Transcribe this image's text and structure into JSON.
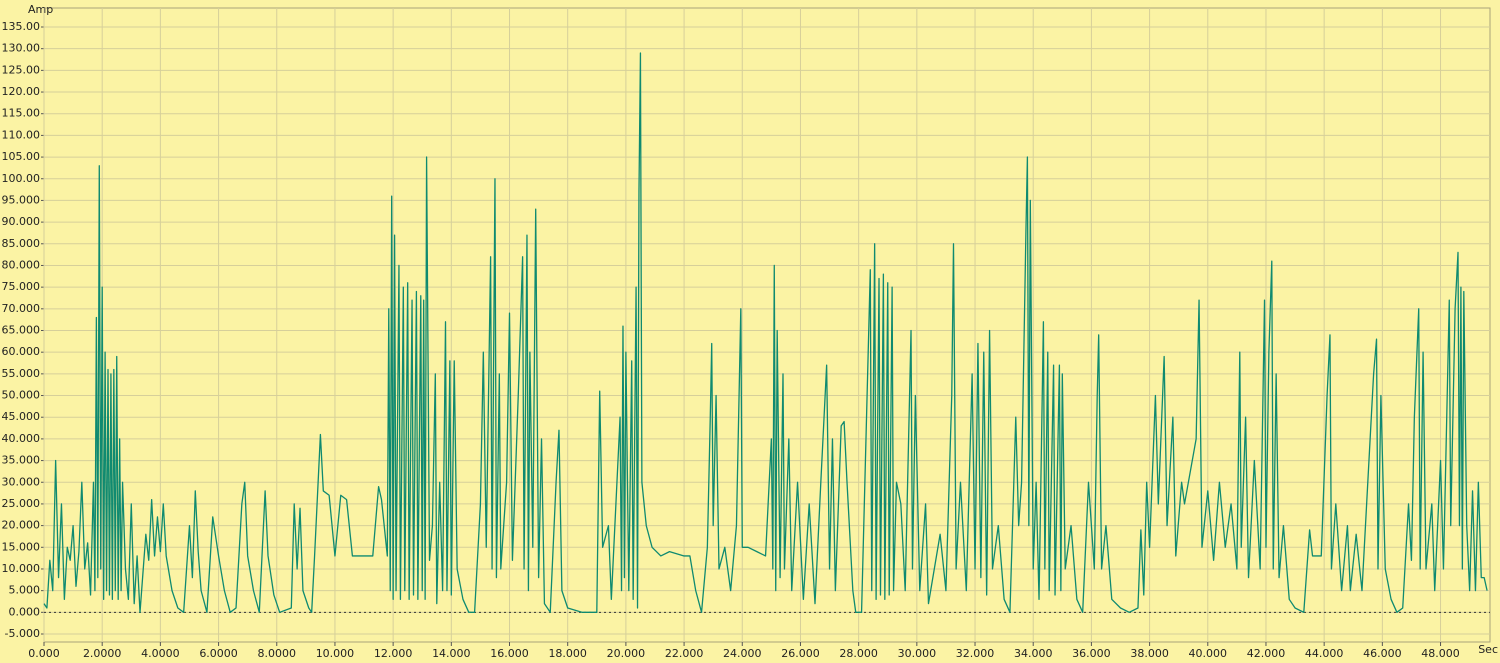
{
  "chart_data": {
    "type": "line",
    "y_label": "Amp",
    "x_label": "Sec",
    "color": "#0f8a70",
    "grid": true,
    "xlim": [
      0,
      49.7
    ],
    "ylim": [
      -5,
      135
    ],
    "xticks": [
      {
        "value": 0,
        "label": "0.000"
      },
      {
        "value": 2,
        "label": "2.0000"
      },
      {
        "value": 4,
        "label": "4.0000"
      },
      {
        "value": 6,
        "label": "6.0000"
      },
      {
        "value": 8,
        "label": "8.0000"
      },
      {
        "value": 10,
        "label": "10.000"
      },
      {
        "value": 12,
        "label": "12.000"
      },
      {
        "value": 14,
        "label": "14.000"
      },
      {
        "value": 16,
        "label": "16.000"
      },
      {
        "value": 18,
        "label": "18.000"
      },
      {
        "value": 20,
        "label": "20.000"
      },
      {
        "value": 22,
        "label": "22.000"
      },
      {
        "value": 24,
        "label": "24.000"
      },
      {
        "value": 26,
        "label": "26.000"
      },
      {
        "value": 28,
        "label": "28.000"
      },
      {
        "value": 30,
        "label": "30.000"
      },
      {
        "value": 32,
        "label": "32.000"
      },
      {
        "value": 34,
        "label": "34.000"
      },
      {
        "value": 36,
        "label": "36.000"
      },
      {
        "value": 38,
        "label": "38.000"
      },
      {
        "value": 40,
        "label": "40.000"
      },
      {
        "value": 42,
        "label": "42.000"
      },
      {
        "value": 44,
        "label": "44.000"
      },
      {
        "value": 46,
        "label": "46.000"
      },
      {
        "value": 48,
        "label": "48.000"
      }
    ],
    "yticks": [
      {
        "value": 135,
        "label": "135.00"
      },
      {
        "value": 130,
        "label": "130.00"
      },
      {
        "value": 125,
        "label": "125.00"
      },
      {
        "value": 120,
        "label": "120.00"
      },
      {
        "value": 115,
        "label": "115.00"
      },
      {
        "value": 110,
        "label": "110.00"
      },
      {
        "value": 105,
        "label": "105.00"
      },
      {
        "value": 100,
        "label": "100.00"
      },
      {
        "value": 95,
        "label": "95.000"
      },
      {
        "value": 90,
        "label": "90.000"
      },
      {
        "value": 85,
        "label": "85.000"
      },
      {
        "value": 80,
        "label": "80.000"
      },
      {
        "value": 75,
        "label": "75.000"
      },
      {
        "value": 70,
        "label": "70.000"
      },
      {
        "value": 65,
        "label": "65.000"
      },
      {
        "value": 60,
        "label": "60.000"
      },
      {
        "value": 55,
        "label": "55.000"
      },
      {
        "value": 50,
        "label": "50.000"
      },
      {
        "value": 45,
        "label": "45.000"
      },
      {
        "value": 40,
        "label": "40.000"
      },
      {
        "value": 35,
        "label": "35.000"
      },
      {
        "value": 30,
        "label": "30.000"
      },
      {
        "value": 25,
        "label": "25.000"
      },
      {
        "value": 20,
        "label": "20.000"
      },
      {
        "value": 15,
        "label": "15.000"
      },
      {
        "value": 10,
        "label": "10.000"
      },
      {
        "value": 5,
        "label": "5.000"
      },
      {
        "value": 0,
        "label": "0.000"
      },
      {
        "value": -5,
        "label": "-5.000"
      }
    ],
    "x": [
      0,
      0.1,
      0.2,
      0.3,
      0.4,
      0.5,
      0.6,
      0.7,
      0.8,
      0.9,
      1.0,
      1.1,
      1.2,
      1.3,
      1.4,
      1.5,
      1.6,
      1.7,
      1.75,
      1.8,
      1.85,
      1.9,
      1.95,
      2.0,
      2.05,
      2.1,
      2.15,
      2.2,
      2.25,
      2.3,
      2.35,
      2.4,
      2.45,
      2.5,
      2.55,
      2.6,
      2.65,
      2.7,
      2.8,
      2.9,
      3.0,
      3.1,
      3.2,
      3.3,
      3.5,
      3.6,
      3.7,
      3.8,
      3.9,
      4.0,
      4.1,
      4.2,
      4.4,
      4.6,
      4.8,
      5.0,
      5.1,
      5.2,
      5.3,
      5.4,
      5.6,
      5.8,
      6.0,
      6.2,
      6.4,
      6.6,
      6.8,
      6.9,
      7.0,
      7.2,
      7.4,
      7.6,
      7.7,
      7.9,
      8.1,
      8.5,
      8.6,
      8.7,
      8.8,
      8.9,
      9.1,
      9.2,
      9.3,
      9.5,
      9.6,
      9.8,
      10.0,
      10.2,
      10.4,
      10.6,
      11.0,
      11.3,
      11.5,
      11.6,
      11.8,
      11.85,
      11.9,
      11.95,
      12.0,
      12.05,
      12.1,
      12.2,
      12.25,
      12.35,
      12.4,
      12.5,
      12.55,
      12.65,
      12.7,
      12.8,
      12.85,
      12.95,
      13.0,
      13.05,
      13.1,
      13.15,
      13.25,
      13.35,
      13.45,
      13.5,
      13.6,
      13.7,
      13.8,
      13.85,
      13.95,
      14.0,
      14.1,
      14.2,
      14.4,
      14.6,
      14.8,
      15.0,
      15.1,
      15.2,
      15.35,
      15.4,
      15.5,
      15.55,
      15.65,
      15.7,
      15.9,
      16.0,
      16.1,
      16.3,
      16.45,
      16.5,
      16.6,
      16.65,
      16.7,
      16.8,
      16.9,
      17.0,
      17.1,
      17.2,
      17.4,
      17.6,
      17.7,
      17.8,
      18.0,
      18.5,
      19.0,
      19.1,
      19.2,
      19.4,
      19.5,
      19.8,
      19.85,
      19.9,
      19.95,
      20.0,
      20.1,
      20.2,
      20.25,
      20.35,
      20.4,
      20.45,
      20.5,
      20.55,
      20.7,
      20.9,
      21.2,
      21.5,
      22.0,
      22.2,
      22.4,
      22.6,
      22.8,
      22.9,
      22.95,
      23.0,
      23.1,
      23.2,
      23.4,
      23.6,
      23.8,
      23.95,
      24.0,
      24.2,
      24.5,
      24.8,
      25.0,
      25.05,
      25.1,
      25.15,
      25.2,
      25.3,
      25.4,
      25.45,
      25.6,
      25.7,
      25.9,
      26.1,
      26.3,
      26.5,
      26.7,
      26.9,
      27.0,
      27.1,
      27.2,
      27.4,
      27.5,
      27.6,
      27.8,
      27.9,
      28.1,
      28.4,
      28.45,
      28.55,
      28.6,
      28.7,
      28.75,
      28.85,
      28.9,
      29.0,
      29.05,
      29.15,
      29.2,
      29.3,
      29.45,
      29.6,
      29.8,
      29.85,
      29.95,
      30.1,
      30.3,
      30.4,
      30.6,
      30.8,
      31.0,
      31.2,
      31.26,
      31.35,
      31.5,
      31.7,
      31.9,
      32.0,
      32.1,
      32.2,
      32.3,
      32.4,
      32.5,
      32.6,
      32.8,
      33.0,
      33.2,
      33.4,
      33.5,
      33.6,
      33.75,
      33.8,
      33.85,
      33.9,
      34.0,
      34.1,
      34.2,
      34.35,
      34.4,
      34.5,
      34.55,
      34.7,
      34.75,
      34.9,
      34.95,
      35.0,
      35.1,
      35.3,
      35.5,
      35.7,
      35.9,
      36.1,
      36.2,
      36.25,
      36.35,
      36.5,
      36.7,
      37.0,
      37.3,
      37.6,
      37.7,
      37.8,
      37.9,
      38.0,
      38.2,
      38.3,
      38.5,
      38.6,
      38.8,
      38.9,
      39.1,
      39.2,
      39.6,
      39.7,
      39.8,
      40.0,
      40.2,
      40.4,
      40.6,
      40.8,
      41.0,
      41.1,
      41.15,
      41.3,
      41.4,
      41.6,
      41.8,
      41.95,
      42.0,
      42.1,
      42.2,
      42.25,
      42.35,
      42.45,
      42.6,
      42.8,
      43.0,
      43.3,
      43.5,
      43.6,
      43.9,
      44.1,
      44.2,
      44.25,
      44.4,
      44.6,
      44.8,
      44.9,
      45.1,
      45.3,
      45.7,
      45.8,
      45.85,
      45.95,
      46.1,
      46.3,
      46.5,
      46.7,
      46.9,
      47.0,
      47.1,
      47.25,
      47.3,
      47.4,
      47.5,
      47.7,
      47.8,
      48.0,
      48.1,
      48.3,
      48.35,
      48.5,
      48.6,
      48.65,
      48.7,
      48.75,
      48.8,
      48.9,
      49.0,
      49.1,
      49.2,
      49.3,
      49.4,
      49.5,
      49.6
    ],
    "values": [
      2,
      1,
      12,
      5,
      35,
      8,
      25,
      3,
      15,
      12,
      20,
      6,
      14,
      30,
      10,
      16,
      4,
      30,
      5,
      68,
      8,
      103,
      10,
      75,
      3,
      60,
      5,
      56,
      4,
      55,
      3,
      56,
      5,
      59,
      3,
      40,
      5,
      30,
      10,
      3,
      25,
      2,
      13,
      0,
      18,
      12,
      26,
      13,
      22,
      14,
      25,
      13,
      5,
      1,
      0,
      20,
      8,
      28,
      14,
      5,
      0,
      22,
      13,
      5,
      0,
      1,
      25,
      30,
      13,
      5,
      0,
      28,
      13,
      4,
      0,
      1,
      25,
      10,
      24,
      5,
      1,
      0,
      13,
      41,
      28,
      27,
      13,
      27,
      26,
      13,
      13,
      13,
      29,
      26,
      13,
      70,
      5,
      96,
      3,
      87,
      5,
      80,
      3,
      75,
      5,
      76,
      3,
      72,
      4,
      74,
      3,
      73,
      5,
      72,
      3,
      105,
      12,
      20,
      55,
      2,
      30,
      5,
      67,
      5,
      58,
      4,
      58,
      10,
      3,
      0,
      0,
      25,
      60,
      15,
      82,
      10,
      100,
      8,
      55,
      10,
      30,
      69,
      12,
      50,
      82,
      10,
      87,
      5,
      60,
      15,
      93,
      8,
      40,
      2,
      0,
      30,
      42,
      5,
      1,
      0,
      0,
      51,
      15,
      20,
      3,
      45,
      5,
      66,
      8,
      60,
      5,
      58,
      3,
      75,
      1,
      97,
      129,
      30,
      20,
      15,
      13,
      14,
      13,
      13,
      5,
      0,
      15,
      45,
      62,
      20,
      50,
      10,
      15,
      5,
      20,
      70,
      15,
      15,
      14,
      13,
      40,
      10,
      80,
      5,
      65,
      8,
      55,
      10,
      40,
      5,
      30,
      3,
      25,
      2,
      30,
      57,
      10,
      40,
      5,
      43,
      44,
      30,
      5,
      0,
      0,
      79,
      5,
      85,
      3,
      77,
      4,
      78,
      3,
      76,
      4,
      75,
      5,
      30,
      25,
      5,
      65,
      10,
      50,
      5,
      25,
      2,
      10,
      18,
      5,
      50,
      85,
      10,
      30,
      5,
      55,
      10,
      62,
      8,
      60,
      4,
      65,
      10,
      20,
      3,
      0,
      45,
      20,
      30,
      88,
      105,
      20,
      95,
      10,
      30,
      3,
      67,
      10,
      60,
      5,
      57,
      4,
      57,
      5,
      55,
      10,
      20,
      3,
      0,
      30,
      10,
      50,
      64,
      10,
      20,
      3,
      1,
      0,
      1,
      19,
      4,
      30,
      15,
      50,
      25,
      59,
      20,
      45,
      13,
      30,
      25,
      40,
      72,
      15,
      28,
      12,
      30,
      15,
      25,
      10,
      60,
      15,
      45,
      8,
      35,
      10,
      72,
      15,
      60,
      81,
      10,
      55,
      8,
      20,
      3,
      1,
      0,
      19,
      13,
      13,
      50,
      64,
      10,
      25,
      5,
      20,
      5,
      18,
      5,
      55,
      63,
      10,
      50,
      10,
      3,
      0,
      1,
      25,
      12,
      45,
      70,
      10,
      60,
      10,
      25,
      5,
      35,
      10,
      72,
      20,
      70,
      83,
      20,
      75,
      10,
      74,
      20,
      5,
      28,
      5,
      30,
      8,
      8,
      5
    ]
  }
}
